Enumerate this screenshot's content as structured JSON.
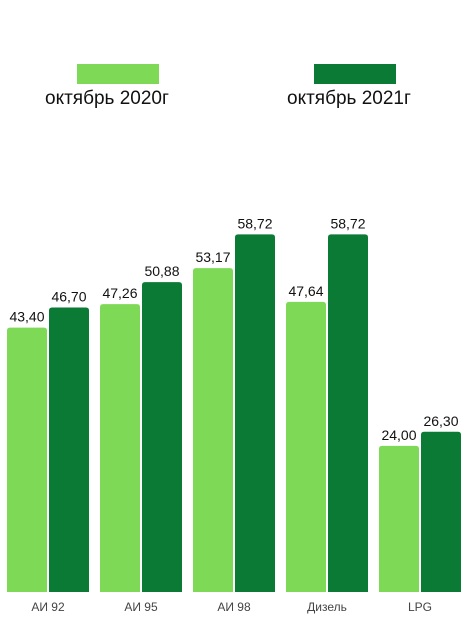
{
  "legend": {
    "items": [
      {
        "label": "октябрь 2020г",
        "color": "#7ed957"
      },
      {
        "label": "октябрь 2021г",
        "color": "#0a7a34"
      }
    ]
  },
  "chart_data": {
    "type": "bar",
    "categories": [
      "АИ 92",
      "АИ 95",
      "АИ 98",
      "Дизель",
      "LPG"
    ],
    "series": [
      {
        "name": "октябрь 2020г",
        "values": [
          43.4,
          47.26,
          53.17,
          47.64,
          24.0
        ],
        "labels": [
          "43,40",
          "47,26",
          "53,17",
          "47,64",
          "24,00"
        ],
        "color": "#7ed957"
      },
      {
        "name": "октябрь 2021г",
        "values": [
          46.7,
          50.88,
          58.72,
          58.72,
          26.3
        ],
        "labels": [
          "46,70",
          "50,88",
          "58,72",
          "58,72",
          "26,30"
        ],
        "color": "#0a7a34"
      }
    ],
    "ylim": [
      0,
      66
    ],
    "grid": false,
    "legend_position": "top"
  }
}
